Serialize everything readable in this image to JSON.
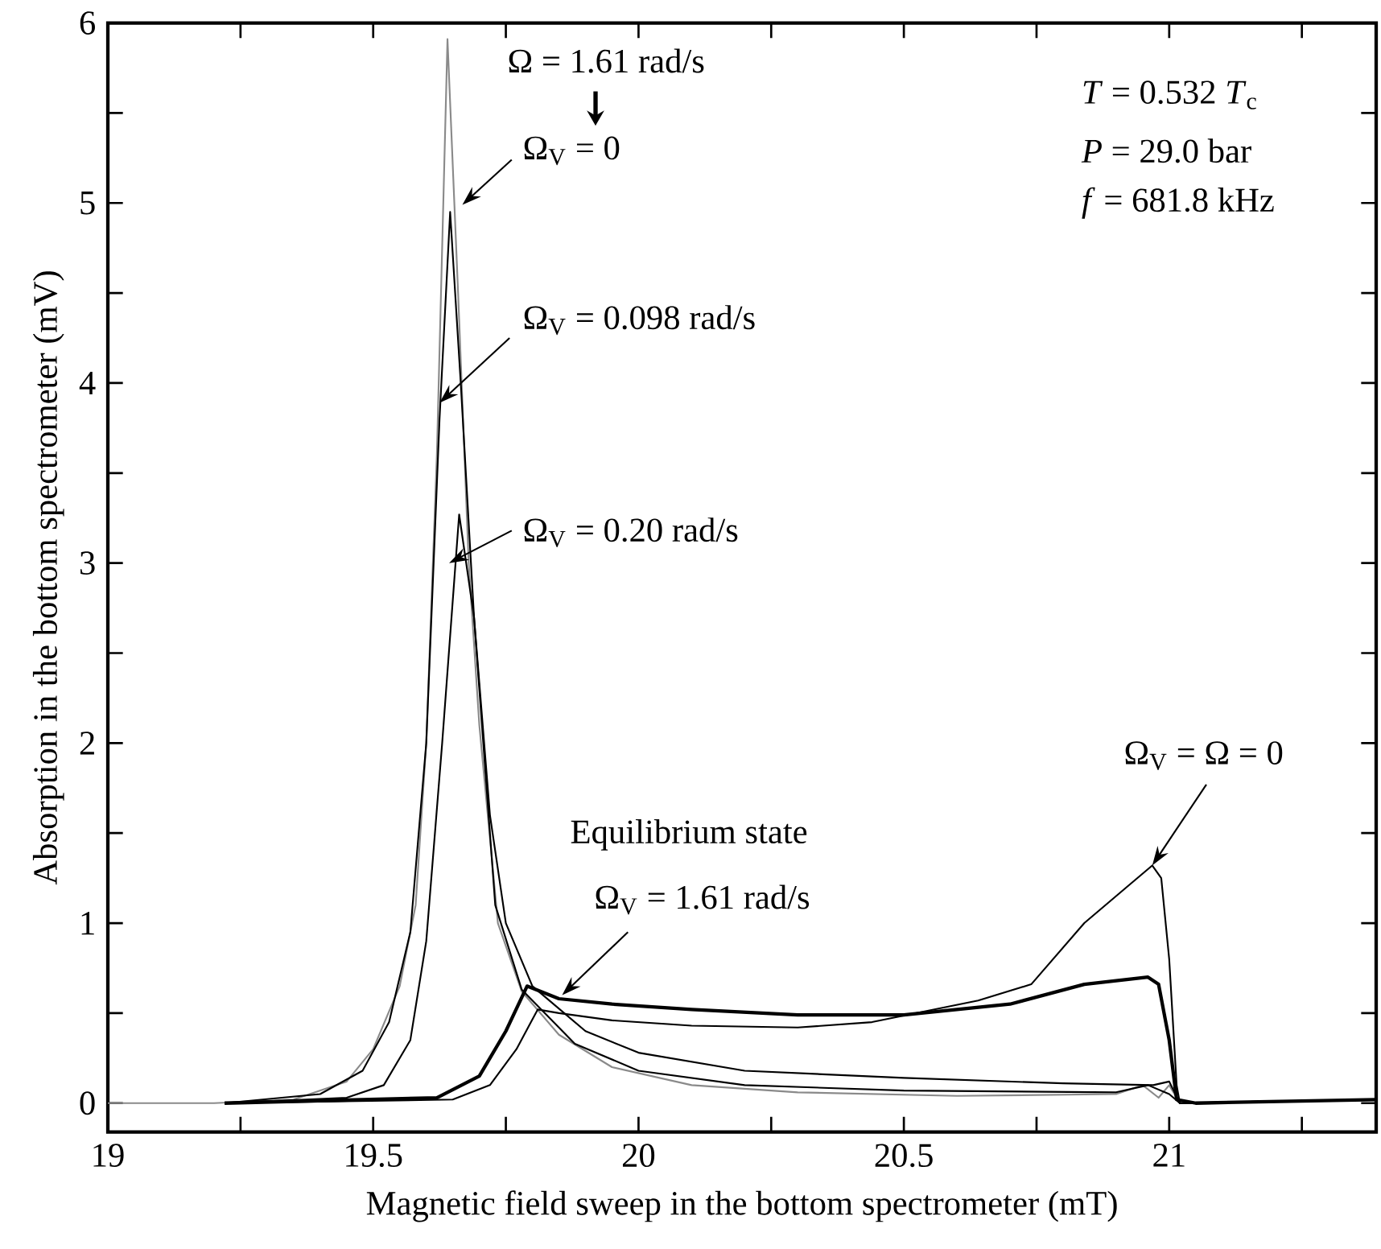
{
  "chart_data": {
    "type": "line",
    "xlabel": "Magnetic field sweep in the bottom spectrometer (mT)",
    "ylabel": "Absorption in the bottom spectrometer  (mV)",
    "xlim": [
      19,
      21.39
    ],
    "ylim": [
      -0.16,
      6
    ],
    "xticks": [
      19,
      {
        "value": 19.25,
        "label": null
      },
      19.5,
      {
        "value": 19.75,
        "label": null
      },
      20,
      {
        "value": 20.25,
        "label": null
      },
      20.5,
      {
        "value": 20.75,
        "label": null
      },
      21,
      {
        "value": 21.25,
        "label": null
      }
    ],
    "yticks": [
      0,
      {
        "value": 0.5,
        "label": null
      },
      1,
      {
        "value": 1.5,
        "label": null
      },
      2,
      {
        "value": 2.5,
        "label": null
      },
      3,
      {
        "value": 3.5,
        "label": null
      },
      4,
      {
        "value": 4.5,
        "label": null
      },
      5,
      {
        "value": 5.5,
        "label": null
      },
      6
    ],
    "grid": false,
    "series": [
      {
        "color": "#8a8a8a",
        "x": [
          19.0,
          19.2,
          19.35,
          19.45,
          19.5,
          19.55,
          19.58,
          19.6,
          19.62,
          19.64,
          19.66,
          19.68,
          19.7,
          19.735,
          19.78,
          19.85,
          19.95,
          20.1,
          20.3,
          20.6,
          20.9,
          20.95,
          20.98,
          21.0,
          21.02,
          21.39
        ],
        "values": [
          0,
          0,
          0.02,
          0.12,
          0.3,
          0.65,
          1.1,
          2.0,
          3.6,
          5.91,
          4.5,
          3.0,
          2.1,
          1.0,
          0.62,
          0.38,
          0.2,
          0.1,
          0.06,
          0.04,
          0.05,
          0.1,
          0.03,
          0.1,
          0,
          0.02
        ]
      },
      {
        "color": "#000000",
        "x": [
          19.22,
          19.4,
          19.48,
          19.53,
          19.57,
          19.6,
          19.625,
          19.645,
          19.665,
          19.69,
          19.73,
          19.78,
          19.88,
          20.0,
          20.2,
          20.5,
          20.9,
          20.96,
          21.0,
          21.02,
          21.39
        ],
        "values": [
          0,
          0.05,
          0.18,
          0.45,
          0.95,
          2.0,
          3.8,
          4.95,
          4.0,
          2.7,
          1.1,
          0.63,
          0.33,
          0.18,
          0.1,
          0.07,
          0.06,
          0.1,
          0.05,
          0,
          0.02
        ]
      },
      {
        "color": "#000000",
        "x": [
          19.22,
          19.45,
          19.52,
          19.57,
          19.6,
          19.63,
          19.662,
          19.69,
          19.72,
          19.75,
          19.8,
          19.9,
          20.0,
          20.2,
          20.5,
          20.8,
          20.97,
          21.0,
          21.02,
          21.39
        ],
        "values": [
          0,
          0.03,
          0.1,
          0.35,
          0.9,
          2.0,
          3.27,
          2.7,
          1.6,
          1.0,
          0.65,
          0.4,
          0.28,
          0.18,
          0.14,
          0.11,
          0.1,
          0.12,
          0,
          0.02
        ]
      },
      {
        "color": "#000000",
        "x": [
          19.22,
          19.65,
          19.72,
          19.77,
          19.81,
          19.85,
          19.95,
          20.1,
          20.3,
          20.44,
          20.64,
          20.74,
          20.84,
          20.92,
          20.968,
          20.985,
          21.0,
          21.014,
          21.02,
          21.39
        ],
        "values": [
          0,
          0.02,
          0.1,
          0.3,
          0.52,
          0.5,
          0.46,
          0.43,
          0.42,
          0.45,
          0.57,
          0.66,
          1.0,
          1.2,
          1.32,
          1.25,
          0.8,
          0.1,
          0,
          0.02
        ]
      },
      {
        "color": "#000000",
        "x": [
          19.22,
          19.62,
          19.7,
          19.75,
          19.79,
          19.85,
          19.95,
          20.1,
          20.3,
          20.5,
          20.7,
          20.84,
          20.96,
          20.98,
          21.0,
          21.014,
          21.05,
          21.39
        ],
        "values": [
          0,
          0.03,
          0.15,
          0.4,
          0.65,
          0.58,
          0.55,
          0.52,
          0.49,
          0.49,
          0.55,
          0.66,
          0.7,
          0.66,
          0.35,
          0.02,
          0,
          0.02
        ]
      }
    ],
    "annotations": [
      "Ω = 1.61 rad/s",
      {
        "text": "Ω$_{V}$ = 0",
        "x": 19.668,
        "y": 4.99
      },
      {
        "text": "Ω$_{V}$ = 0.098 rad/s",
        "x": 19.625,
        "y": 3.89
      },
      {
        "text": "Ω$_{V}$ = 0.20 rad/s",
        "x": 19.643,
        "y": 3.0
      },
      "Equilibrium state",
      {
        "text": "Ω$_{V}$ = 1.61 rad/s",
        "x": 19.856,
        "y": 0.6
      },
      {
        "text": "Ω$_{V}$ = Ω = 0",
        "x": 20.968,
        "y": 1.32
      },
      "*T* = 0.532 *T*$_{c}$",
      "*P* = 29.0 bar",
      "*f* = 681.8 kHz"
    ]
  }
}
